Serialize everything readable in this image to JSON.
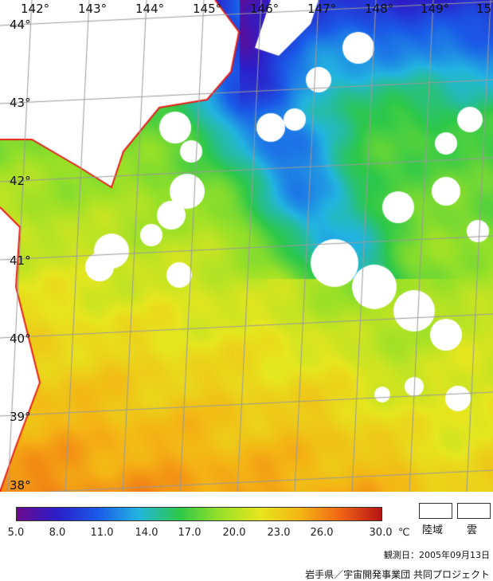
{
  "map": {
    "lon_labels": [
      "142°",
      "143°",
      "144°",
      "145°",
      "146°",
      "147°",
      "148°",
      "149°",
      "15"
    ],
    "lat_labels": [
      "44°",
      "43°",
      "42°",
      "41°",
      "40°",
      "39°",
      "38°"
    ],
    "colors": {
      "coast": "#e8201a",
      "grid": "#9a9a9a",
      "cloud": "#ffffff"
    }
  },
  "legend": {
    "ticks": [
      "5.0",
      "8.0",
      "11.0",
      "14.0",
      "17.0",
      "20.0",
      "23.0",
      "26.0",
      "30.0"
    ],
    "unit": "℃",
    "land_label": "陸域",
    "cloud_label": "雲",
    "colormap": [
      "#6a0a8c",
      "#2b1ec8",
      "#1a5ae8",
      "#22b4e0",
      "#2cc84a",
      "#96e028",
      "#e6e61e",
      "#f4b414",
      "#f06414",
      "#b41414"
    ]
  },
  "date_text": "観測日：2005年09月13日",
  "credit_text": "岩手県／宇宙開発事業団 共同プロジェクト"
}
